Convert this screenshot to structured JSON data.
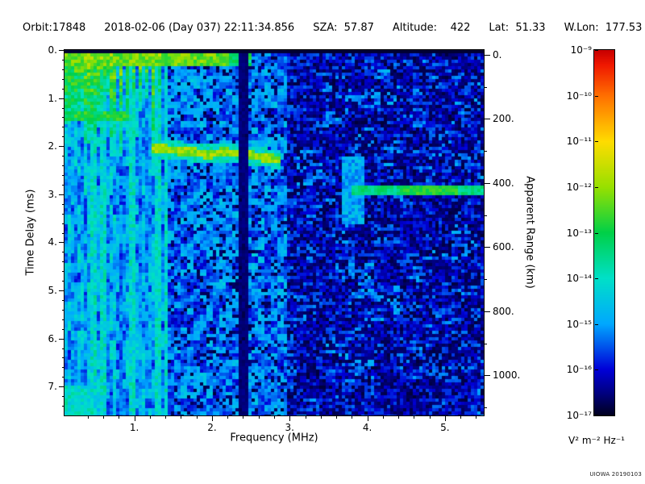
{
  "header": {
    "orbit": "Orbit:17848",
    "datetime": "2018-02-06 (Day 037) 22:11:34.856",
    "sza": "SZA:  57.87",
    "altitude": "Altitude:    422",
    "lat": "Lat:  51.33",
    "wlon": "W.Lon:  177.53"
  },
  "chart_data": {
    "type": "heatmap",
    "subtype": "radar-sounder-ionogram",
    "xlabel": "Frequency (MHz)",
    "ylabel": "Time Delay (ms)",
    "y2label": "Apparent Range (km)",
    "x_range_mhz": [
      0.1,
      5.5
    ],
    "y_range_ms": [
      0,
      7.6
    ],
    "y2_range_km": [
      0,
      1140
    ],
    "x_ticks": [
      1,
      2,
      3,
      4,
      5
    ],
    "x_tick_labels": [
      "1.",
      "2.",
      "3.",
      "4.",
      "5."
    ],
    "y_ticks": [
      0,
      1,
      2,
      3,
      4,
      5,
      6,
      7
    ],
    "y_tick_labels": [
      "0.",
      "1.",
      "2.",
      "3.",
      "4.",
      "5.",
      "6.",
      "7."
    ],
    "y2_ticks_km": [
      0,
      200,
      400,
      600,
      800,
      1000
    ],
    "y2_tick_labels": [
      "0.",
      "200.",
      "400.",
      "600.",
      "800.",
      "1000."
    ],
    "colorbar": {
      "scale": "log",
      "max_label": "10⁻⁹",
      "min_label": "10⁻¹⁷",
      "tick_labels": [
        "10⁻⁹",
        "10⁻¹⁰",
        "10⁻¹¹",
        "10⁻¹²",
        "10⁻¹³",
        "10⁻¹⁴",
        "10⁻¹⁵",
        "10⁻¹⁶",
        "10⁻¹⁷"
      ],
      "units": "V² m⁻² Hz⁻¹",
      "colormap_stops": [
        [
          0.0,
          "#000020"
        ],
        [
          0.06,
          "#000080"
        ],
        [
          0.125,
          "#0000d8"
        ],
        [
          0.25,
          "#00a8ff"
        ],
        [
          0.375,
          "#00e0c8"
        ],
        [
          0.5,
          "#00d048"
        ],
        [
          0.625,
          "#98e000"
        ],
        [
          0.75,
          "#ffdc00"
        ],
        [
          0.875,
          "#ff7000"
        ],
        [
          0.96,
          "#f01800"
        ],
        [
          1.0,
          "#c80000"
        ]
      ]
    },
    "features": {
      "noise_seed": 20190103,
      "top_band": {
        "t": [
          0.07,
          0.33
        ],
        "f": [
          0.1,
          2.5
        ],
        "intensity": 0.56
      },
      "plasma_harmonic_stripes": {
        "f_start": 0.14,
        "spacing_mhz": 0.085,
        "count": 15,
        "t_top": 0.07,
        "max_depth_ms": [
          0.9,
          2.2
        ],
        "intensity": 0.6
      },
      "full_height_columns_mhz": [
        0.48,
        0.6,
        0.97,
        1.3,
        1.42
      ],
      "cyclotron_band": {
        "t": [
          1.25,
          1.5
        ],
        "f": [
          0.1,
          0.95
        ],
        "intensity": 0.5
      },
      "ionosphere_trace": {
        "points_f_t": [
          [
            1.22,
            2.02
          ],
          [
            1.45,
            2.07
          ],
          [
            1.7,
            2.12
          ],
          [
            1.95,
            2.17
          ],
          [
            2.15,
            2.12
          ],
          [
            2.45,
            2.18
          ],
          [
            2.75,
            2.25
          ],
          [
            2.9,
            2.3
          ]
        ],
        "half_width_ms": 0.09,
        "intensity": 0.6
      },
      "surface_reflection": {
        "t": 2.92,
        "f": [
          3.8,
          5.5
        ],
        "half_width_ms": 0.07,
        "intensity": 0.45
      },
      "vertical_smear": {
        "f": [
          3.68,
          3.98
        ],
        "t": [
          2.2,
          3.6
        ],
        "intensity": 0.22
      },
      "bottom_left_patch": {
        "f": [
          0.1,
          0.45
        ],
        "t": [
          6.95,
          7.6
        ],
        "intensity": 0.32
      },
      "absorption_gap_mhz": [
        2.33,
        2.47
      ],
      "noise_regions": [
        {
          "f": [
            0.1,
            1.45
          ],
          "base": 0.12,
          "amp": 0.24,
          "style": "vertical",
          "dropout": 0
        },
        {
          "f": [
            1.45,
            2.95
          ],
          "base": 0.09,
          "amp": 0.22,
          "style": "speckle",
          "dropout": 0.15
        },
        {
          "f": [
            2.95,
            5.51
          ],
          "base": 0.03,
          "amp": 0.2,
          "style": "horizontal",
          "dropout": 0.35
        }
      ]
    }
  },
  "footer": {
    "watermark": "UIOWA 20190103"
  }
}
